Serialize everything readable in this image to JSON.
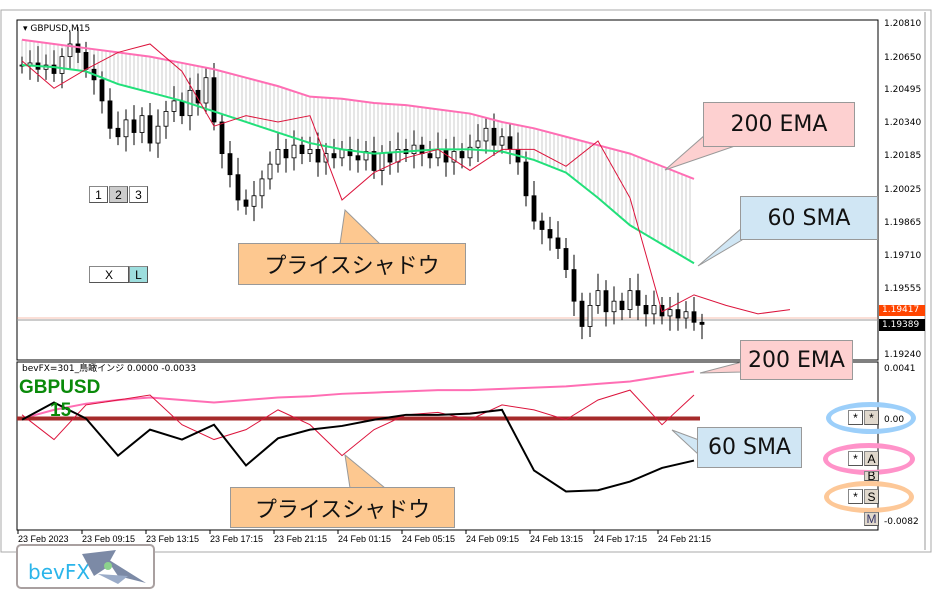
{
  "symbol_title": "GBPUSD,M15",
  "indicator_title": "bevFX=301_鳥瞰インジ 0.0000 -0.0033",
  "overlay_symbol": "GBPUSD",
  "overlay_timeframe": "15",
  "price_axis": [
    "1.20810",
    "1.20650",
    "1.20495",
    "1.20340",
    "1.20185",
    "1.20025",
    "1.19865",
    "1.19710",
    "1.19555",
    "1.19240"
  ],
  "price_labels": {
    "ask": "1.19417",
    "bid": "1.19389"
  },
  "indicator_axis": {
    "top": "0.0041",
    "zero": "0.00",
    "bottom": "-0.0082"
  },
  "time_axis": [
    "23 Feb 2023",
    "23 Feb 09:15",
    "23 Feb 13:15",
    "23 Feb 17:15",
    "23 Feb 21:15",
    "24 Feb 01:15",
    "24 Feb 05:15",
    "24 Feb 09:15",
    "24 Feb 13:15",
    "24 Feb 17:15",
    "24 Feb 21:15"
  ],
  "buttons": {
    "tf": [
      "1",
      "2",
      "3"
    ],
    "x": "X",
    "l": "L",
    "star": "*",
    "a": "A",
    "b": "B",
    "s": "S",
    "m": "M"
  },
  "callouts": {
    "ema_top": "200 EMA",
    "sma_top": "60 SMA",
    "shadow_top": "プライスシャドウ",
    "ema_bottom": "200 EMA",
    "sma_bottom": "60 SMA",
    "shadow_bottom": "プライスシャドウ"
  },
  "logo": "bevFX",
  "colors": {
    "ema": "#ff6eb4",
    "sma": "#22e07a",
    "shadow": "#dc143c",
    "zero_line": "#a52a2a",
    "callout_pink": "#fdd0d0",
    "callout_blue": "#d0e6f4",
    "callout_orange": "#fdc890"
  },
  "chart_data": {
    "type": "candlestick",
    "interval_minutes": 30,
    "closes": [
      1.2062,
      1.2063,
      1.206,
      1.2062,
      1.2058,
      1.2066,
      1.2072,
      1.2068,
      1.206,
      1.2055,
      1.2045,
      1.2032,
      1.2028,
      1.2036,
      1.203,
      1.2038,
      1.2025,
      1.2033,
      1.204,
      1.2045,
      1.2038,
      1.205,
      1.2044,
      1.2056,
      1.2035,
      1.202,
      1.201,
      1.1998,
      1.1995,
      1.2,
      1.2008,
      1.2015,
      1.2022,
      1.2018,
      1.2024,
      1.202,
      1.2022,
      1.2016,
      1.202,
      1.2018,
      1.2022,
      1.2019,
      1.2017,
      1.2021,
      1.2012,
      1.202,
      1.2016,
      1.2022,
      1.202,
      1.2024,
      1.202,
      1.2018,
      1.2022,
      1.2016,
      1.2021,
      1.2018,
      1.2023,
      1.2026,
      1.2032,
      1.2024,
      1.2028,
      1.2022,
      1.2016,
      1.2,
      1.1988,
      1.1984,
      1.198,
      1.1975,
      1.1965,
      1.195,
      1.1938,
      1.1948,
      1.1955,
      1.1945,
      1.195,
      1.1946,
      1.1955,
      1.1948,
      1.1944,
      1.1948,
      1.1943,
      1.1946,
      1.1942,
      1.1945,
      1.194,
      1.1939
    ],
    "overlay_interval_minutes": 120,
    "ema200": [
      1.2074,
      1.2072,
      1.207,
      1.2068,
      1.2066,
      1.2063,
      1.206,
      1.2056,
      1.2052,
      1.2047,
      1.2046,
      1.2044,
      1.2043,
      1.2041,
      1.2039,
      1.2035,
      1.2032,
      1.2028,
      1.2024,
      1.202,
      1.2014,
      1.2008
    ],
    "sma60": [
      1.2062,
      1.2061,
      1.2059,
      1.2053,
      1.2049,
      1.2045,
      1.204,
      1.2035,
      1.203,
      1.2025,
      1.2022,
      1.202,
      1.2021,
      1.2022,
      1.2022,
      1.2021,
      1.2017,
      1.2011,
      1.1999,
      1.1986,
      1.1977,
      1.1968
    ],
    "price_shadow": [
      1.2064,
      1.2051,
      1.206,
      1.2068,
      1.2072,
      1.2059,
      1.2033,
      1.2038,
      1.2035,
      1.2038,
      1.1998,
      1.2011,
      1.2018,
      1.2022,
      1.2012,
      1.2022,
      1.2022,
      1.2014,
      1.2026,
      1.1999,
      1.1945,
      1.1953,
      1.1948,
      1.1944,
      1.1946
    ],
    "ylim": [
      1.1924,
      1.2081
    ],
    "indicator": {
      "ylim": [
        -0.0082,
        0.0041
      ],
      "price": [
        0.0001,
        0.0015,
        0.0002,
        -0.0028,
        -0.0007,
        -0.0015,
        -0.0003,
        -0.0036,
        -0.0014,
        -0.0007,
        -0.0004,
        0.0001,
        0.0005,
        0.0005,
        0.0006,
        0.0009,
        -0.004,
        -0.0057,
        -0.0056,
        -0.0049,
        -0.0038,
        -0.0032
      ],
      "ema200": [
        0.0002,
        0.0009,
        0.0014,
        0.0017,
        0.0019,
        0.0017,
        0.0015,
        0.0017,
        0.0019,
        0.002,
        0.0022,
        0.0023,
        0.0024,
        0.0025,
        0.0025,
        0.0026,
        0.0027,
        0.0028,
        0.003,
        0.0032,
        0.0036,
        0.004
      ],
      "sma60_level": 0.0002,
      "price_shadow": [
        0.0005,
        -0.0015,
        0.0013,
        0.0017,
        0.0021,
        -0.0003,
        -0.0015,
        -0.0007,
        0.0009,
        -0.0003,
        -0.0028,
        -0.0007,
        0.0005,
        0.0007,
        0.0001,
        0.0013,
        0.0009,
        0.0001,
        0.0017,
        0.0025,
        -0.0003,
        0.0021
      ]
    }
  }
}
